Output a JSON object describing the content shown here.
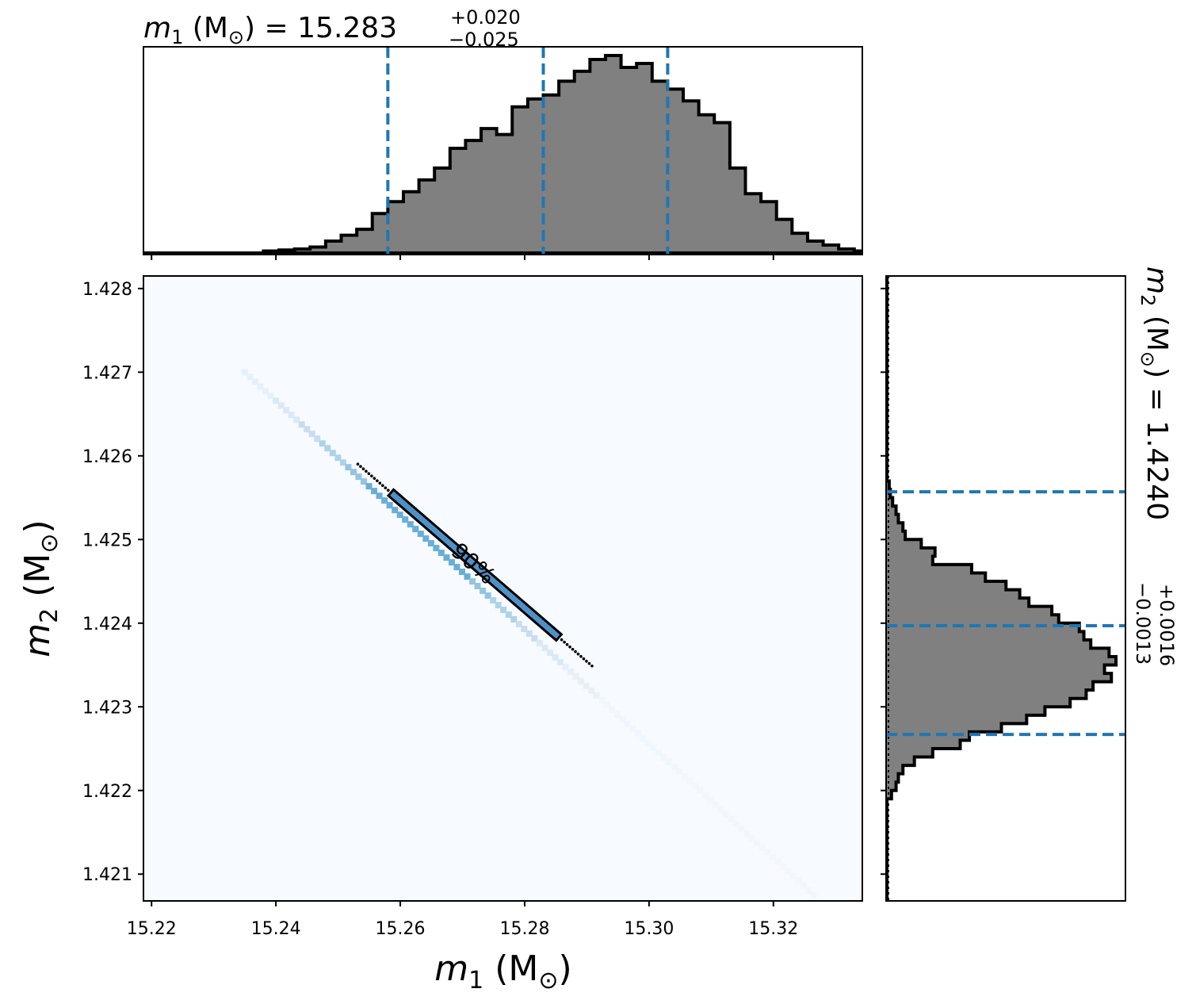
{
  "chart_data": [
    {
      "type": "histogram",
      "panel": "top-marginal",
      "title": {
        "sym": "m",
        "sub": "1",
        "unit": " (M",
        "unit_sub": "⊙",
        "unit_close": ")",
        "eq": " = 15.283",
        "err_plus": "+0.020",
        "err_minus": "−0.025"
      },
      "x_range": [
        15.2187,
        15.3343
      ],
      "quantiles": [
        15.258,
        15.283,
        15.303
      ],
      "bin_start": 15.238,
      "bin_width": 0.0025,
      "heights": [
        0.01,
        0.015,
        0.02,
        0.03,
        0.06,
        0.09,
        0.12,
        0.2,
        0.26,
        0.31,
        0.37,
        0.43,
        0.53,
        0.57,
        0.63,
        0.6,
        0.74,
        0.78,
        0.8,
        0.87,
        0.92,
        0.98,
        1.0,
        0.94,
        0.96,
        0.87,
        0.83,
        0.77,
        0.7,
        0.66,
        0.43,
        0.3,
        0.26,
        0.17,
        0.1,
        0.06,
        0.04,
        0.02,
        0.01,
        0.005
      ]
    },
    {
      "type": "heatmap",
      "panel": "joint",
      "xlabel": {
        "sym": "m",
        "sub": "1",
        "unit": " (M",
        "unit_sub": "⊙",
        "unit_close": ")"
      },
      "ylabel": {
        "sym": "m",
        "sub": "2",
        "unit": " (M",
        "unit_sub": "⊙",
        "unit_close": ")"
      },
      "x_range": [
        15.2187,
        15.3343
      ],
      "y_range": [
        1.42068,
        1.42815
      ],
      "x_ticks": [
        "15.22",
        "15.24",
        "15.26",
        "15.28",
        "15.30",
        "15.32"
      ],
      "y_ticks": [
        "1.421",
        "1.422",
        "1.423",
        "1.424",
        "1.425",
        "1.426",
        "1.427",
        "1.428"
      ],
      "ridge": {
        "x1": 15.235,
        "y1": 1.427,
        "x2": 15.3265,
        "y2": 1.42075
      },
      "contour_90": {
        "x1": 15.2585,
        "y1": 1.42556,
        "x2": 15.2855,
        "y2": 1.42383
      },
      "contour_label": "90%",
      "colormap": "Blues"
    },
    {
      "type": "histogram",
      "panel": "right-marginal",
      "orientation": "horizontal",
      "title": {
        "sym": "m",
        "sub": "2",
        "unit": " (M",
        "unit_sub": "⊙",
        "unit_close": ")",
        "eq": " = 1.4240",
        "err_plus": "+0.0016",
        "err_minus": "−0.0013"
      },
      "y_range": [
        1.42068,
        1.42815
      ],
      "quantiles": [
        1.42267,
        1.42397,
        1.42557
      ],
      "bin_start": 1.4219,
      "bin_width": 0.0001,
      "heights": [
        0.02,
        0.04,
        0.05,
        0.07,
        0.12,
        0.2,
        0.32,
        0.36,
        0.5,
        0.61,
        0.69,
        0.8,
        0.87,
        0.9,
        0.98,
        0.95,
        1.0,
        0.97,
        0.89,
        0.86,
        0.84,
        0.75,
        0.72,
        0.62,
        0.58,
        0.52,
        0.43,
        0.37,
        0.2,
        0.21,
        0.15,
        0.08,
        0.07,
        0.05,
        0.04,
        0.025,
        0.015,
        0.01
      ]
    }
  ],
  "colors": {
    "quantile_line": "#1f77b4",
    "hist_fill": "#808080",
    "hist_edge": "#000000",
    "heat_low": "#f7fbff",
    "heat_high": "#08306b",
    "contour": "#000000"
  }
}
